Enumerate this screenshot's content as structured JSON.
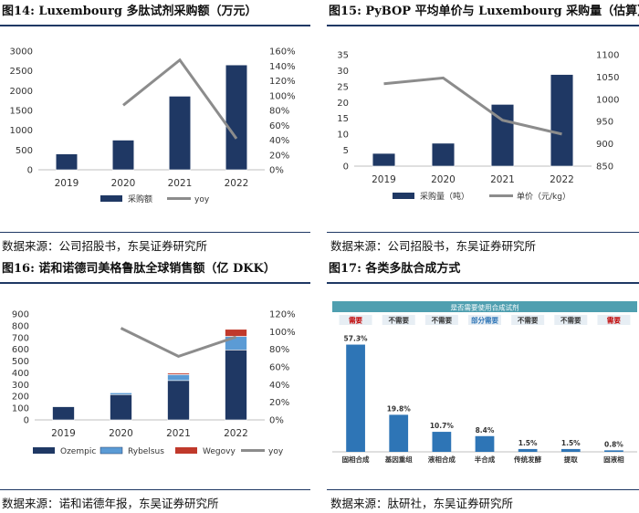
{
  "panels": {
    "fig14": {
      "title": "图14: Luxembourg 多肽试剂采购额（万元）",
      "source": "数据来源：公司招股书，东吴证券研究所"
    },
    "fig15": {
      "title": "图15: PyBOP 平均单价与 Luxembourg 采购量（估算）",
      "source": "数据来源：公司招股书，东吴证券研究所"
    },
    "fig16": {
      "title": "图16: 诺和诺德司美格鲁肽全球销售额（亿 DKK）",
      "source": "数据来源：诺和诺德年报，东吴证券研究所"
    },
    "fig17": {
      "title": "图17: 各类多肽合成方式",
      "source": "数据来源：肽研社，东吴证券研究所"
    }
  },
  "colors": {
    "navy": "#1f3864",
    "gray_line": "#8c8c8c",
    "light_blue": "#5b9bd5",
    "red": "#c0392b",
    "teal_bar": "#2e75b6",
    "banner": "#4f9fb0",
    "need_red": "#c00000",
    "need_blue": "#2e75b6"
  },
  "chart_data": [
    {
      "type": "bar",
      "categories": [
        "2019",
        "2020",
        "2021",
        "2022"
      ],
      "series": [
        {
          "name": "采购额",
          "type": "bar",
          "axis": "left",
          "values": [
            400,
            750,
            1860,
            2650
          ]
        },
        {
          "name": "yoy",
          "type": "line",
          "axis": "right",
          "values": [
            null,
            87,
            148,
            42
          ]
        }
      ],
      "ylim": [
        0,
        3000
      ],
      "yticks": [
        "0",
        "500",
        "1000",
        "1500",
        "2000",
        "2500",
        "3000"
      ],
      "y2lim": [
        0,
        160
      ],
      "y2ticks": [
        "0%",
        "20%",
        "40%",
        "60%",
        "80%",
        "100%",
        "120%",
        "140%",
        "160%"
      ],
      "legend": "bottom"
    },
    {
      "type": "bar",
      "categories": [
        "2019",
        "2020",
        "2021",
        "2022"
      ],
      "series": [
        {
          "name": "采购量（吨）",
          "type": "bar",
          "axis": "left",
          "values": [
            4,
            7.2,
            19.4,
            28.8
          ]
        },
        {
          "name": "单价（元/kg）",
          "type": "line",
          "axis": "right",
          "values": [
            1035,
            1048,
            953,
            922
          ]
        }
      ],
      "ylim": [
        0,
        35
      ],
      "yticks": [
        "0",
        "5",
        "10",
        "15",
        "20",
        "25",
        "30",
        "35"
      ],
      "y2lim": [
        850,
        1100
      ],
      "y2ticks": [
        "850",
        "900",
        "950",
        "1000",
        "1050",
        "1100"
      ],
      "legend": "bottom"
    },
    {
      "type": "bar",
      "stacked": true,
      "categories": [
        "2019",
        "2020",
        "2021",
        "2022"
      ],
      "series": [
        {
          "name": "Ozempic",
          "type": "bar",
          "axis": "left",
          "values": [
            112,
            215,
            335,
            595
          ]
        },
        {
          "name": "Rybelsus",
          "type": "bar",
          "axis": "left",
          "values": [
            0,
            15,
            50,
            115
          ]
        },
        {
          "name": "Wegovy",
          "type": "bar",
          "axis": "left",
          "values": [
            0,
            0,
            12,
            60
          ]
        },
        {
          "name": "yoy",
          "type": "line",
          "axis": "right",
          "values": [
            null,
            104,
            72,
            94
          ]
        }
      ],
      "ylim": [
        0,
        900
      ],
      "yticks": [
        "0",
        "100",
        "200",
        "300",
        "400",
        "500",
        "600",
        "700",
        "800",
        "900"
      ],
      "y2lim": [
        0,
        120
      ],
      "y2ticks": [
        "0%",
        "20%",
        "40%",
        "60%",
        "80%",
        "100%",
        "120%"
      ],
      "legend": "bottom"
    },
    {
      "type": "bar",
      "banner": "是否需要使用合成试剂",
      "need_labels": [
        "需要",
        "不需要",
        "不需要",
        "部分需要",
        "不需要",
        "不需要",
        "需要"
      ],
      "categories": [
        "固相合成",
        "基因重组",
        "液相合成",
        "半合成",
        "传统发酵",
        "提取",
        "固液相"
      ],
      "values": [
        57.3,
        19.8,
        10.7,
        8.4,
        1.5,
        1.5,
        0.8
      ],
      "value_labels": [
        "57.3%",
        "19.8%",
        "10.7%",
        "8.4%",
        "1.5%",
        "1.5%",
        "0.8%"
      ],
      "ylim": [
        0,
        60
      ]
    }
  ]
}
